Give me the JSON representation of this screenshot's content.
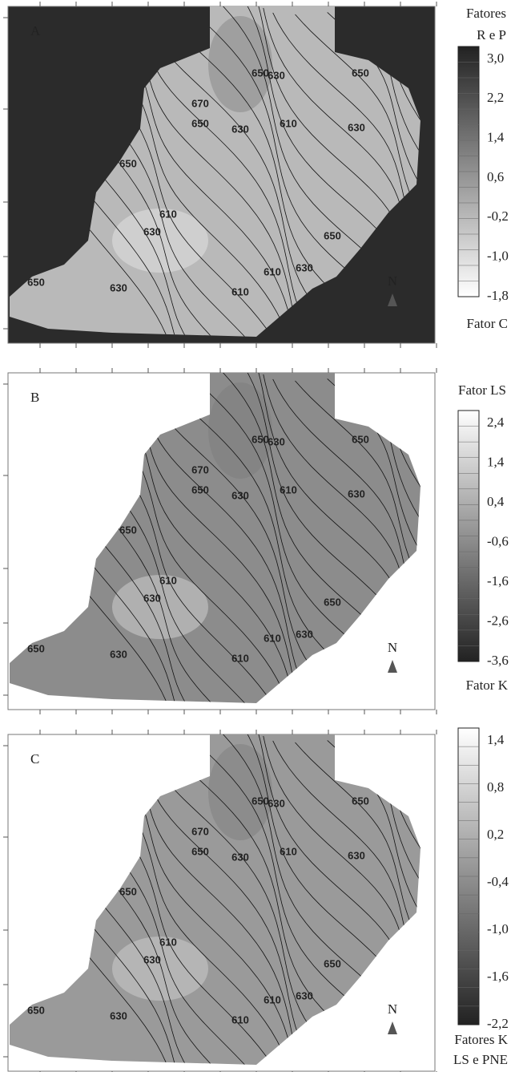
{
  "panels": [
    {
      "label": "A",
      "legend_title": [
        "Fatores",
        "R e P"
      ],
      "scale": [
        "3,0",
        "2,2",
        "1,4",
        "0,6",
        "-0,2",
        "-1,0",
        "-1,8"
      ],
      "footer": [
        "Fator C"
      ],
      "north": "N",
      "contour_labels": [
        "650",
        "630",
        "650",
        "670",
        "650",
        "610",
        "630",
        "650",
        "630",
        "610",
        "630",
        "650",
        "630",
        "610",
        "610",
        "650",
        "630"
      ]
    },
    {
      "label": "B",
      "legend_title": [
        "Fator LS"
      ],
      "scale": [
        "2,4",
        "1,4",
        "0,4",
        "-0,6",
        "-1,6",
        "-2,6",
        "-3,6"
      ],
      "footer": [
        "Fator K"
      ],
      "north": "N",
      "contour_labels": [
        "650",
        "630",
        "650",
        "670",
        "650",
        "610",
        "630",
        "650",
        "630",
        "610",
        "630",
        "650",
        "630",
        "610",
        "610",
        "650",
        "630"
      ]
    },
    {
      "label": "C",
      "scale": [
        "1,4",
        "0,8",
        "0,2",
        "-0,4",
        "-1,0",
        "-1,6",
        "-2,2"
      ],
      "footer": [
        "Fatores K",
        "LS e PNE"
      ],
      "north": "N",
      "contour_labels": [
        "650",
        "630",
        "650",
        "670",
        "650",
        "610",
        "630",
        "650",
        "630",
        "610",
        "630",
        "650",
        "630",
        "610",
        "610",
        "650",
        "630"
      ]
    }
  ]
}
